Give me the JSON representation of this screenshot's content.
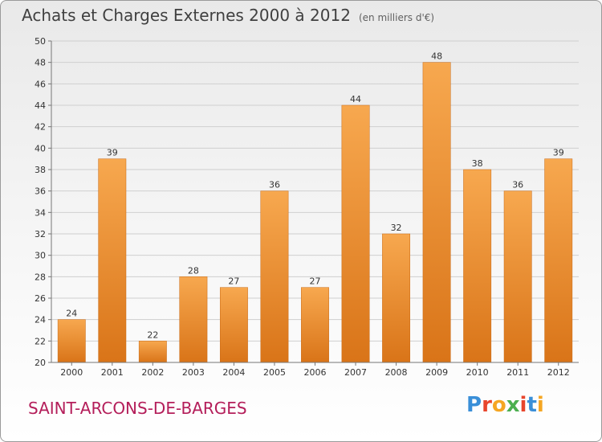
{
  "chart_data": {
    "type": "bar",
    "title": "Achats et Charges Externes 2000 à 2012",
    "unit_note": "(en milliers d'€)",
    "categories": [
      "2000",
      "2001",
      "2002",
      "2003",
      "2004",
      "2005",
      "2006",
      "2007",
      "2008",
      "2009",
      "2010",
      "2011",
      "2012"
    ],
    "values": [
      24,
      39,
      22,
      28,
      27,
      36,
      27,
      44,
      32,
      48,
      38,
      36,
      39
    ],
    "ylim": [
      20,
      50
    ],
    "yticks": [
      20,
      22,
      24,
      26,
      28,
      30,
      32,
      34,
      36,
      38,
      40,
      42,
      44,
      46,
      48,
      50
    ],
    "grid": true,
    "bar_color": "#f28c28",
    "legend": "none"
  },
  "footer": {
    "city": "SAINT-ARCONS-DE-BARGES",
    "logo_text": "Proxiti"
  }
}
